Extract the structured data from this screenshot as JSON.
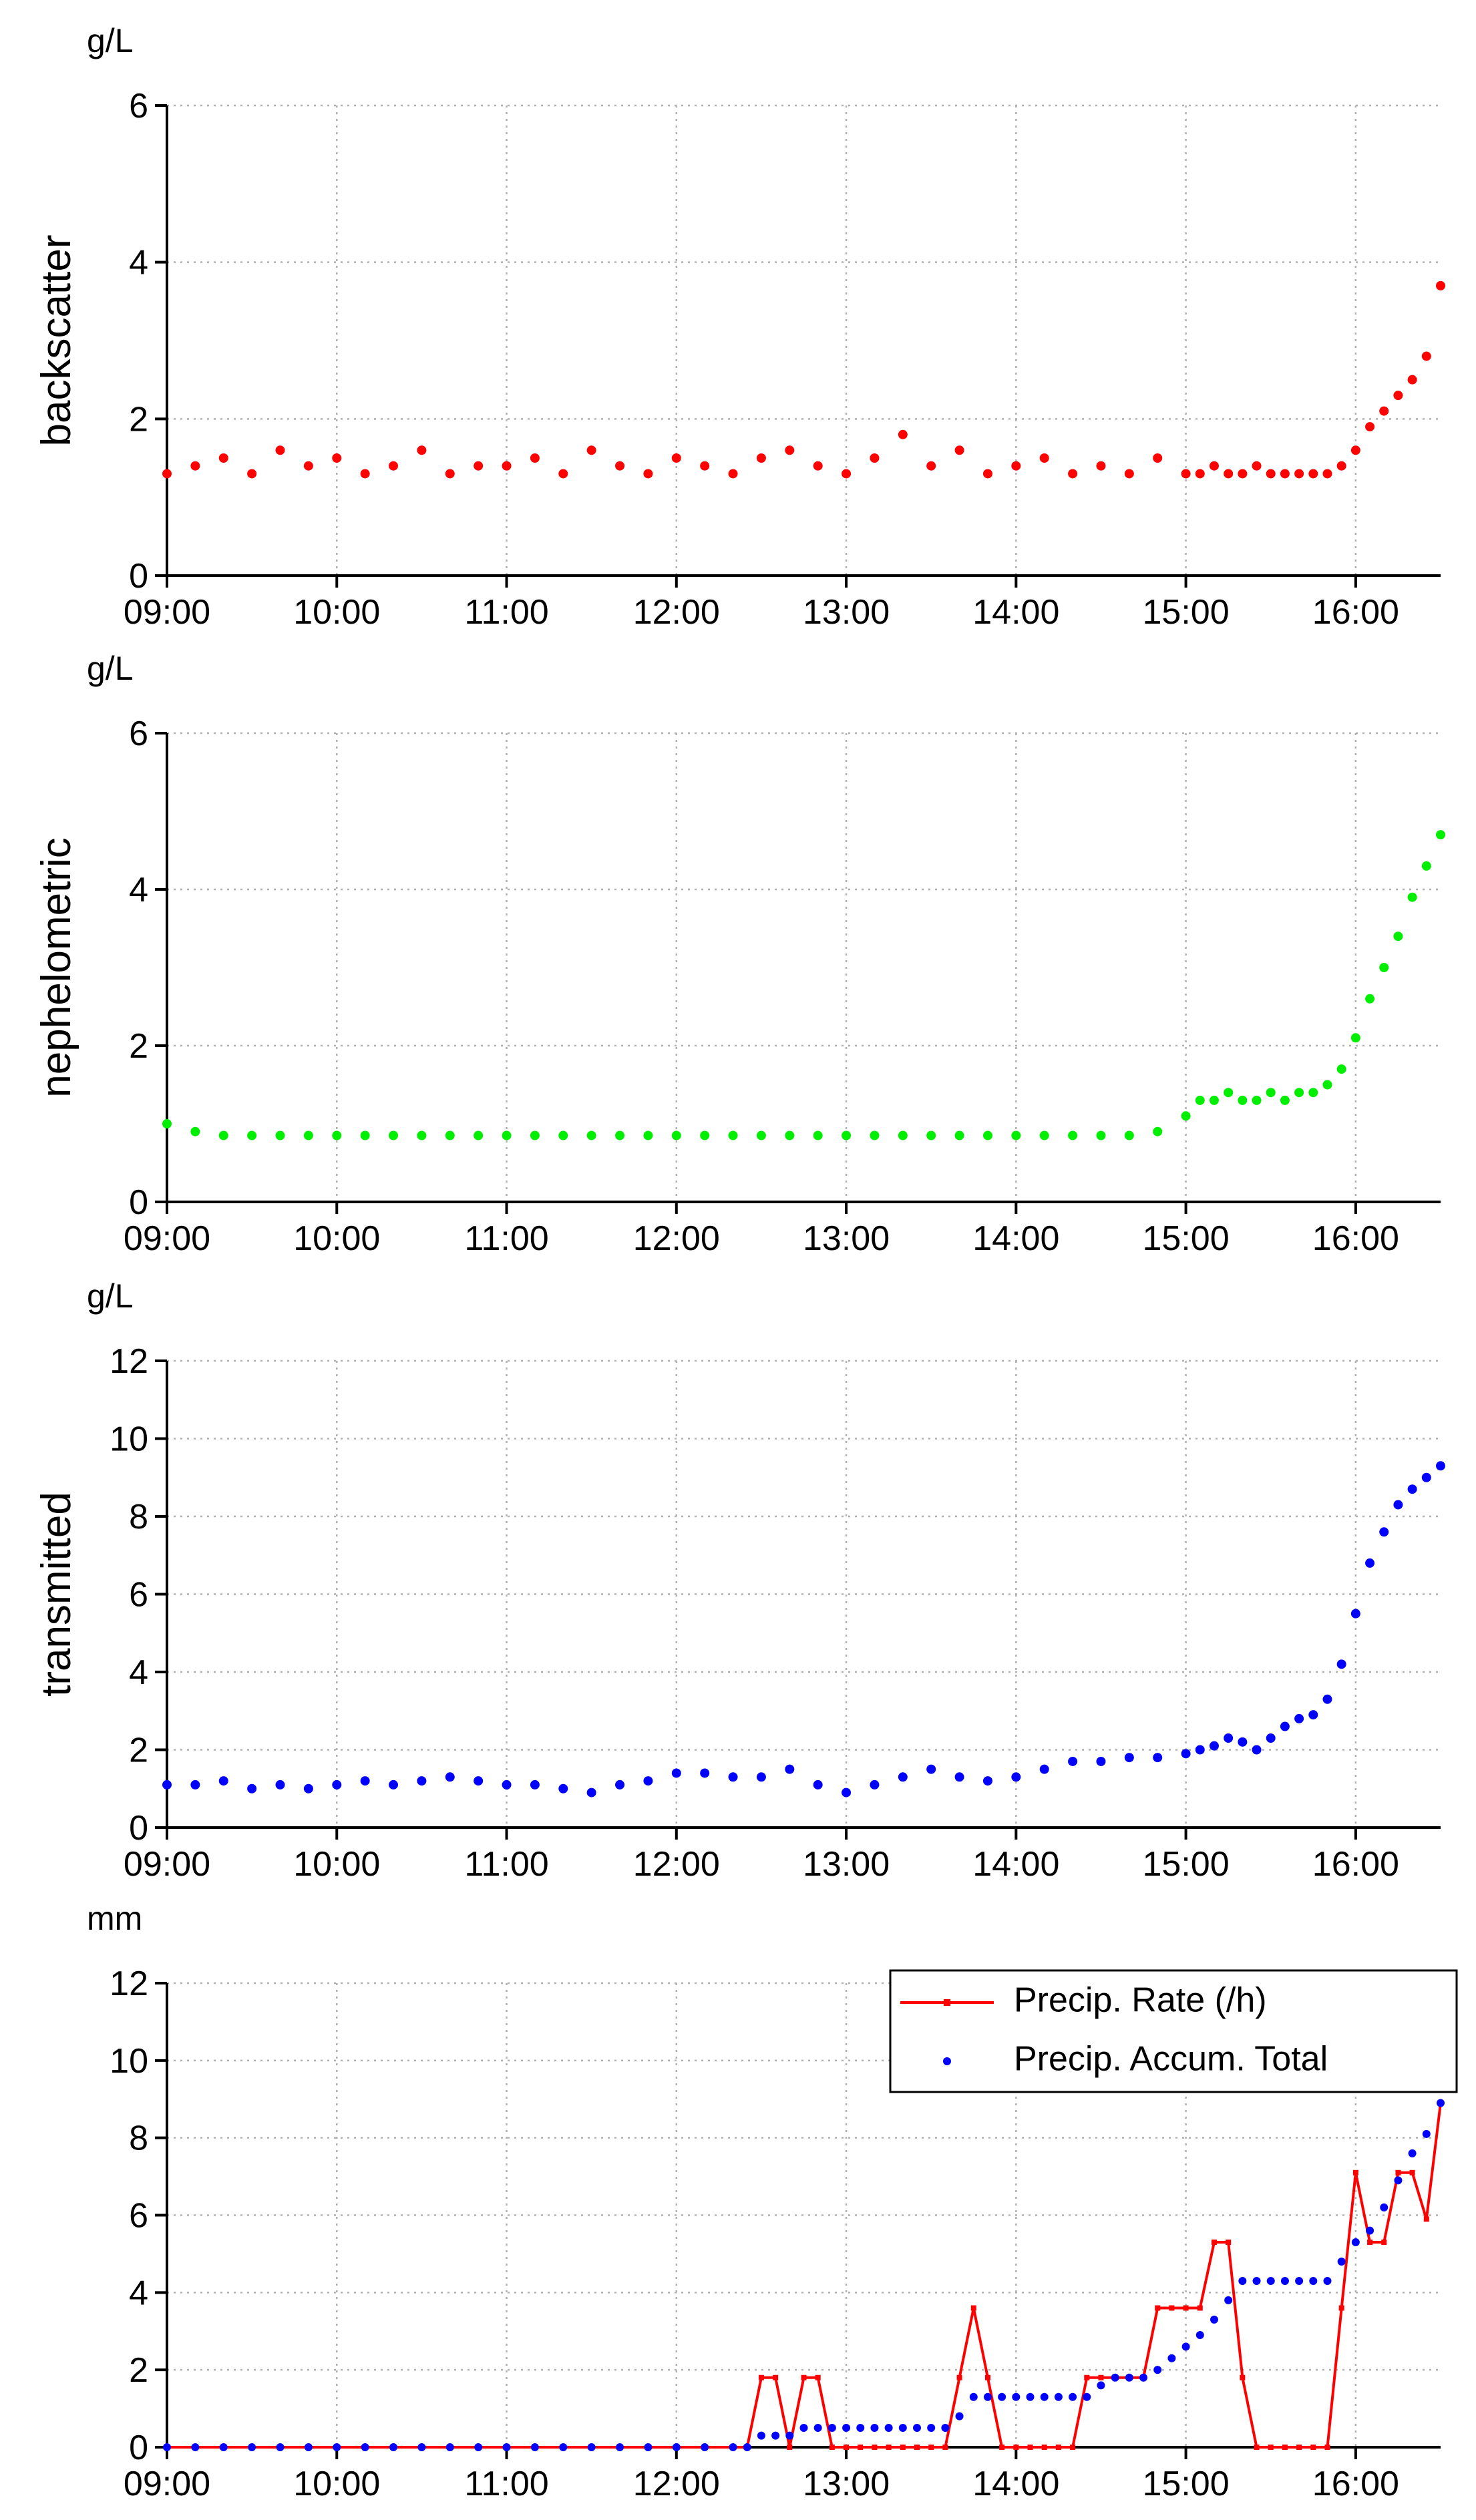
{
  "chart_data": [
    {
      "type": "scatter",
      "unit": "g/L",
      "y_label": "backscatter",
      "color": "#ff0000",
      "x": [
        "09:00",
        "09:10",
        "09:20",
        "09:30",
        "09:40",
        "09:50",
        "10:00",
        "10:10",
        "10:20",
        "10:30",
        "10:40",
        "10:50",
        "11:00",
        "11:10",
        "11:20",
        "11:30",
        "11:40",
        "11:50",
        "12:00",
        "12:10",
        "12:20",
        "12:30",
        "12:40",
        "12:50",
        "13:00",
        "13:10",
        "13:20",
        "13:30",
        "13:40",
        "13:50",
        "14:00",
        "14:10",
        "14:20",
        "14:30",
        "14:40",
        "14:50",
        "15:00",
        "15:05",
        "15:10",
        "15:15",
        "15:20",
        "15:25",
        "15:30",
        "15:35",
        "15:40",
        "15:45",
        "15:50",
        "15:55",
        "16:00",
        "16:05",
        "16:10",
        "16:15",
        "16:20",
        "16:25",
        "16:30"
      ],
      "values": [
        1.3,
        1.4,
        1.5,
        1.3,
        1.6,
        1.4,
        1.5,
        1.3,
        1.4,
        1.6,
        1.3,
        1.4,
        1.4,
        1.5,
        1.3,
        1.6,
        1.4,
        1.3,
        1.5,
        1.4,
        1.3,
        1.5,
        1.6,
        1.4,
        1.3,
        1.5,
        1.8,
        1.4,
        1.6,
        1.3,
        1.4,
        1.5,
        1.3,
        1.4,
        1.3,
        1.5,
        1.3,
        1.3,
        1.4,
        1.3,
        1.3,
        1.4,
        1.3,
        1.3,
        1.3,
        1.3,
        1.3,
        1.4,
        1.6,
        1.9,
        2.1,
        2.3,
        2.5,
        2.8,
        3.7
      ],
      "xlim": [
        "09:00",
        "16:30"
      ],
      "xticks": [
        "09:00",
        "10:00",
        "11:00",
        "12:00",
        "13:00",
        "14:00",
        "15:00",
        "16:00"
      ],
      "ylim": [
        0,
        6
      ],
      "yticks": [
        0,
        2,
        4,
        6
      ],
      "grid": true
    },
    {
      "type": "scatter",
      "unit": "g/L",
      "y_label": "nephelometric",
      "color": "#00ee00",
      "x": [
        "09:00",
        "09:10",
        "09:20",
        "09:30",
        "09:40",
        "09:50",
        "10:00",
        "10:10",
        "10:20",
        "10:30",
        "10:40",
        "10:50",
        "11:00",
        "11:10",
        "11:20",
        "11:30",
        "11:40",
        "11:50",
        "12:00",
        "12:10",
        "12:20",
        "12:30",
        "12:40",
        "12:50",
        "13:00",
        "13:10",
        "13:20",
        "13:30",
        "13:40",
        "13:50",
        "14:00",
        "14:10",
        "14:20",
        "14:30",
        "14:40",
        "14:50",
        "15:00",
        "15:05",
        "15:10",
        "15:15",
        "15:20",
        "15:25",
        "15:30",
        "15:35",
        "15:40",
        "15:45",
        "15:50",
        "15:55",
        "16:00",
        "16:05",
        "16:10",
        "16:15",
        "16:20",
        "16:25",
        "16:30"
      ],
      "values": [
        1.0,
        0.9,
        0.85,
        0.85,
        0.85,
        0.85,
        0.85,
        0.85,
        0.85,
        0.85,
        0.85,
        0.85,
        0.85,
        0.85,
        0.85,
        0.85,
        0.85,
        0.85,
        0.85,
        0.85,
        0.85,
        0.85,
        0.85,
        0.85,
        0.85,
        0.85,
        0.85,
        0.85,
        0.85,
        0.85,
        0.85,
        0.85,
        0.85,
        0.85,
        0.85,
        0.9,
        1.1,
        1.3,
        1.3,
        1.4,
        1.3,
        1.3,
        1.4,
        1.3,
        1.4,
        1.4,
        1.5,
        1.7,
        2.1,
        2.6,
        3.0,
        3.4,
        3.9,
        4.3,
        4.7
      ],
      "xlim": [
        "09:00",
        "16:30"
      ],
      "xticks": [
        "09:00",
        "10:00",
        "11:00",
        "12:00",
        "13:00",
        "14:00",
        "15:00",
        "16:00"
      ],
      "ylim": [
        0,
        6
      ],
      "yticks": [
        0,
        2,
        4,
        6
      ],
      "grid": true
    },
    {
      "type": "scatter",
      "unit": "g/L",
      "y_label": "transmitted",
      "color": "#0000ff",
      "x": [
        "09:00",
        "09:10",
        "09:20",
        "09:30",
        "09:40",
        "09:50",
        "10:00",
        "10:10",
        "10:20",
        "10:30",
        "10:40",
        "10:50",
        "11:00",
        "11:10",
        "11:20",
        "11:30",
        "11:40",
        "11:50",
        "12:00",
        "12:10",
        "12:20",
        "12:30",
        "12:40",
        "12:50",
        "13:00",
        "13:10",
        "13:20",
        "13:30",
        "13:40",
        "13:50",
        "14:00",
        "14:10",
        "14:20",
        "14:30",
        "14:40",
        "14:50",
        "15:00",
        "15:05",
        "15:10",
        "15:15",
        "15:20",
        "15:25",
        "15:30",
        "15:35",
        "15:40",
        "15:45",
        "15:50",
        "15:55",
        "16:00",
        "16:05",
        "16:10",
        "16:15",
        "16:20",
        "16:25",
        "16:30"
      ],
      "values": [
        1.1,
        1.1,
        1.2,
        1.0,
        1.1,
        1.0,
        1.1,
        1.2,
        1.1,
        1.2,
        1.3,
        1.2,
        1.1,
        1.1,
        1.0,
        0.9,
        1.1,
        1.2,
        1.4,
        1.4,
        1.3,
        1.3,
        1.5,
        1.1,
        0.9,
        1.1,
        1.3,
        1.5,
        1.3,
        1.2,
        1.3,
        1.5,
        1.7,
        1.7,
        1.8,
        1.8,
        1.9,
        2.0,
        2.1,
        2.3,
        2.2,
        2.0,
        2.3,
        2.6,
        2.8,
        2.9,
        3.3,
        4.2,
        5.5,
        6.8,
        7.6,
        8.3,
        8.7,
        9.0,
        9.3
      ],
      "xlim": [
        "09:00",
        "16:30"
      ],
      "xticks": [
        "09:00",
        "10:00",
        "11:00",
        "12:00",
        "13:00",
        "14:00",
        "15:00",
        "16:00"
      ],
      "ylim": [
        0,
        12
      ],
      "yticks": [
        0,
        2,
        4,
        6,
        8,
        10,
        12
      ],
      "grid": true
    },
    {
      "type": "line",
      "unit": "mm",
      "legend": "upper right",
      "x": [
        "09:00",
        "09:10",
        "09:20",
        "09:30",
        "09:40",
        "09:50",
        "10:00",
        "10:10",
        "10:20",
        "10:30",
        "10:40",
        "10:50",
        "11:00",
        "11:10",
        "11:20",
        "11:30",
        "11:40",
        "11:50",
        "12:00",
        "12:10",
        "12:20",
        "12:25",
        "12:30",
        "12:35",
        "12:40",
        "12:45",
        "12:50",
        "12:55",
        "13:00",
        "13:05",
        "13:10",
        "13:15",
        "13:20",
        "13:25",
        "13:30",
        "13:35",
        "13:40",
        "13:45",
        "13:50",
        "13:55",
        "14:00",
        "14:05",
        "14:10",
        "14:15",
        "14:20",
        "14:25",
        "14:30",
        "14:35",
        "14:40",
        "14:45",
        "14:50",
        "14:55",
        "15:00",
        "15:05",
        "15:10",
        "15:15",
        "15:20",
        "15:25",
        "15:30",
        "15:35",
        "15:40",
        "15:45",
        "15:50",
        "15:55",
        "16:00",
        "16:05",
        "16:10",
        "16:15",
        "16:20",
        "16:25",
        "16:30"
      ],
      "series": [
        {
          "name": "Precip. Rate (/h)",
          "color": "#ff0000",
          "style": "line-markers",
          "values": [
            0,
            0,
            0,
            0,
            0,
            0,
            0,
            0,
            0,
            0,
            0,
            0,
            0,
            0,
            0,
            0,
            0,
            0,
            0,
            0,
            0,
            0,
            1.8,
            1.8,
            0,
            1.8,
            1.8,
            0,
            0,
            0,
            0,
            0,
            0,
            0,
            0,
            0,
            1.8,
            3.6,
            1.8,
            0,
            0,
            0,
            0,
            0,
            0,
            1.8,
            1.8,
            1.8,
            1.8,
            1.8,
            3.6,
            3.6,
            3.6,
            3.6,
            5.3,
            5.3,
            1.8,
            0,
            0,
            0,
            0,
            0,
            0,
            3.6,
            7.1,
            5.3,
            5.3,
            7.1,
            7.1,
            5.9,
            8.9
          ]
        },
        {
          "name": "Precip. Accum. Total",
          "color": "#0000ff",
          "style": "markers",
          "values": [
            0,
            0,
            0,
            0,
            0,
            0,
            0,
            0,
            0,
            0,
            0,
            0,
            0,
            0,
            0,
            0,
            0,
            0,
            0,
            0,
            0,
            0,
            0.3,
            0.3,
            0.3,
            0.5,
            0.5,
            0.5,
            0.5,
            0.5,
            0.5,
            0.5,
            0.5,
            0.5,
            0.5,
            0.5,
            0.8,
            1.3,
            1.3,
            1.3,
            1.3,
            1.3,
            1.3,
            1.3,
            1.3,
            1.3,
            1.6,
            1.8,
            1.8,
            1.8,
            2.0,
            2.3,
            2.6,
            2.9,
            3.3,
            3.8,
            4.3,
            4.3,
            4.3,
            4.3,
            4.3,
            4.3,
            4.3,
            4.8,
            5.3,
            5.6,
            6.2,
            6.9,
            7.6,
            8.1,
            8.9
          ]
        }
      ],
      "xlim": [
        "09:00",
        "16:30"
      ],
      "xticks": [
        "09:00",
        "10:00",
        "11:00",
        "12:00",
        "13:00",
        "14:00",
        "15:00",
        "16:00"
      ],
      "ylim": [
        0,
        12
      ],
      "yticks": [
        0,
        2,
        4,
        6,
        8,
        10,
        12
      ],
      "grid": true
    }
  ]
}
